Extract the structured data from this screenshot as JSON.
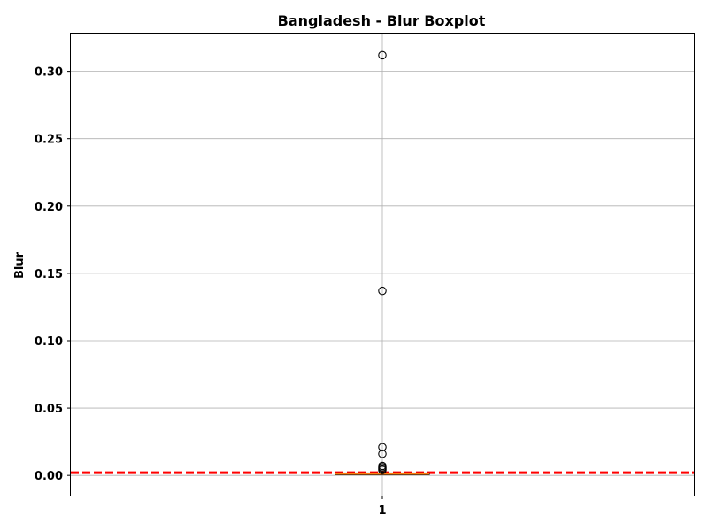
{
  "chart_data": {
    "type": "boxplot",
    "title": "Bangladesh - Blur Boxplot",
    "xlabel": "",
    "ylabel": "Blur",
    "categories": [
      "1"
    ],
    "ylim": [
      -0.015,
      0.328
    ],
    "yticks": [
      0.0,
      0.05,
      0.1,
      0.15,
      0.2,
      0.25,
      0.3
    ],
    "ytick_labels": [
      "0.00",
      "0.05",
      "0.10",
      "0.15",
      "0.20",
      "0.25",
      "0.30"
    ],
    "grid": true,
    "box": {
      "q1": 0.0005,
      "median": 0.0012,
      "q3": 0.0018,
      "whisker_low": 0.0001,
      "whisker_high": 0.0035
    },
    "outliers": [
      0.312,
      0.137,
      0.021,
      0.016,
      0.007,
      0.006,
      0.005,
      0.004
    ],
    "reference_line": {
      "y": 0.002,
      "style": "dashed"
    },
    "colors": {
      "median": "#ff7f0e",
      "reference_line": "#ff0000",
      "grid": "#b0b0b0"
    }
  }
}
